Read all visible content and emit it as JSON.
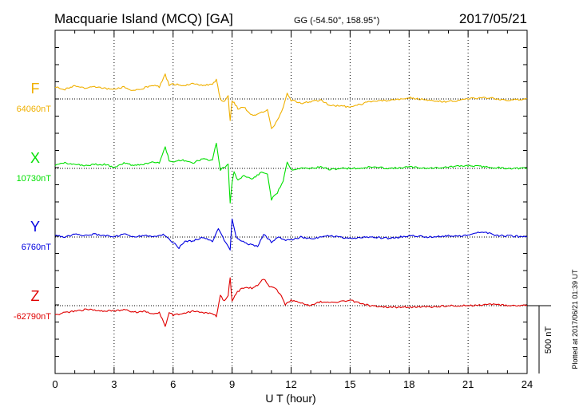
{
  "chart_data": {
    "type": "line",
    "title": "Macquarie Island (MCQ)  [GA]",
    "coords": "GG (-54.50°, 158.95°)",
    "date": "2017/05/21",
    "xlabel": "U T (hour)",
    "xlim": [
      0,
      24
    ],
    "xticks": [
      0,
      3,
      6,
      9,
      12,
      15,
      18,
      21,
      24
    ],
    "scale_bar_label": "500 nT",
    "scale_bar_nT": 500,
    "plotted_note": "Plotted at 2017/06/21 01:39 UT",
    "grid": true,
    "colors": {
      "F": "#f0b000",
      "X": "#00e000",
      "Y": "#0000e0",
      "Z": "#e00000",
      "grid": "#000000"
    },
    "series": [
      {
        "name": "F",
        "baseline_label": "64060nT",
        "baseline": 64060,
        "x": [
          0,
          0.5,
          1,
          1.5,
          2,
          2.5,
          3,
          3.5,
          4,
          4.5,
          5,
          5.3,
          5.6,
          5.8,
          6,
          6.5,
          7,
          7.5,
          8,
          8.2,
          8.4,
          8.6,
          8.8,
          8.9,
          9,
          9.1,
          9.3,
          9.6,
          10,
          10.2,
          10.5,
          10.8,
          11,
          11.3,
          11.6,
          11.8,
          12,
          12.5,
          13,
          13.5,
          14,
          14.5,
          15,
          15.5,
          16,
          17,
          18,
          19,
          20,
          21,
          22,
          23,
          24
        ],
        "values": [
          64150,
          64130,
          64160,
          64140,
          64150,
          64140,
          64130,
          64150,
          64120,
          64140,
          64160,
          64150,
          64240,
          64160,
          64170,
          64160,
          64170,
          64160,
          64170,
          64200,
          64060,
          64040,
          64080,
          63900,
          64050,
          64030,
          63990,
          64000,
          63940,
          63940,
          63960,
          63980,
          63840,
          63900,
          64000,
          64100,
          64050,
          64030,
          64040,
          64050,
          64010,
          64010,
          64000,
          64020,
          64040,
          64050,
          64070,
          64050,
          64040,
          64060,
          64070,
          64050,
          64060
        ]
      },
      {
        "name": "X",
        "baseline_label": "10730nT",
        "baseline": 10730,
        "x": [
          0,
          0.5,
          1,
          1.5,
          2,
          2.5,
          3,
          3.5,
          4,
          4.5,
          5,
          5.3,
          5.6,
          5.8,
          6,
          6.5,
          7,
          7.5,
          8,
          8.2,
          8.4,
          8.6,
          8.8,
          8.9,
          9,
          9.1,
          9.3,
          9.6,
          10,
          10.2,
          10.5,
          10.8,
          11,
          11.3,
          11.6,
          11.8,
          12,
          12.5,
          13,
          13.5,
          14,
          14.5,
          15,
          15.5,
          16,
          17,
          18,
          19,
          20,
          21,
          22,
          23,
          24
        ],
        "values": [
          10750,
          10770,
          10760,
          10750,
          10760,
          10760,
          10740,
          10770,
          10750,
          10760,
          10780,
          10770,
          10890,
          10790,
          10780,
          10790,
          10770,
          10800,
          10790,
          10920,
          10720,
          10740,
          10760,
          10480,
          10630,
          10700,
          10640,
          10680,
          10650,
          10670,
          10700,
          10690,
          10500,
          10550,
          10640,
          10780,
          10720,
          10730,
          10730,
          10740,
          10720,
          10730,
          10730,
          10730,
          10740,
          10730,
          10740,
          10730,
          10740,
          10750,
          10740,
          10730,
          10730
        ]
      },
      {
        "name": "Y",
        "baseline_label": "6760nT",
        "baseline": 6760,
        "x": [
          0,
          0.5,
          1,
          1.5,
          2,
          2.5,
          3,
          3.5,
          4,
          4.5,
          5,
          5.5,
          6,
          6.3,
          6.6,
          7,
          7.5,
          8,
          8.3,
          8.6,
          8.9,
          9,
          9.2,
          9.5,
          10,
          10.3,
          10.6,
          11,
          11.3,
          11.6,
          12,
          12.5,
          13,
          14,
          15,
          16,
          17,
          18,
          19,
          20,
          21,
          21.5,
          22,
          22.5,
          23,
          24
        ],
        "values": [
          6770,
          6760,
          6780,
          6770,
          6780,
          6770,
          6760,
          6780,
          6760,
          6770,
          6760,
          6780,
          6720,
          6680,
          6730,
          6730,
          6760,
          6730,
          6820,
          6740,
          6660,
          6900,
          6760,
          6730,
          6700,
          6690,
          6780,
          6720,
          6760,
          6740,
          6740,
          6760,
          6750,
          6770,
          6750,
          6760,
          6750,
          6770,
          6760,
          6770,
          6770,
          6800,
          6790,
          6770,
          6770,
          6760
        ]
      },
      {
        "name": "Z",
        "baseline_label": "-62790nT",
        "baseline": -62790,
        "x": [
          0,
          0.5,
          1,
          1.5,
          2,
          2.5,
          3,
          3.5,
          4,
          4.5,
          5,
          5.3,
          5.6,
          5.8,
          6,
          6.5,
          7,
          7.5,
          8,
          8.2,
          8.4,
          8.6,
          8.8,
          8.9,
          9,
          9.2,
          9.5,
          10,
          10.3,
          10.6,
          10.9,
          11.2,
          11.5,
          11.7,
          12,
          12.5,
          13,
          13.5,
          14,
          14.5,
          15,
          15.5,
          16,
          17,
          18,
          19,
          20,
          21,
          22,
          23,
          24
        ],
        "values": [
          -62860,
          -62840,
          -62830,
          -62820,
          -62820,
          -62830,
          -62830,
          -62820,
          -62840,
          -62830,
          -62850,
          -62840,
          -62940,
          -62840,
          -62860,
          -62850,
          -62830,
          -62840,
          -62850,
          -62870,
          -62710,
          -62760,
          -62710,
          -62590,
          -62750,
          -62700,
          -62660,
          -62660,
          -62640,
          -62590,
          -62650,
          -62660,
          -62720,
          -62780,
          -62750,
          -62770,
          -62790,
          -62760,
          -62770,
          -62760,
          -62750,
          -62770,
          -62790,
          -62800,
          -62800,
          -62800,
          -62790,
          -62790,
          -62780,
          -62790,
          -62790
        ]
      }
    ]
  }
}
